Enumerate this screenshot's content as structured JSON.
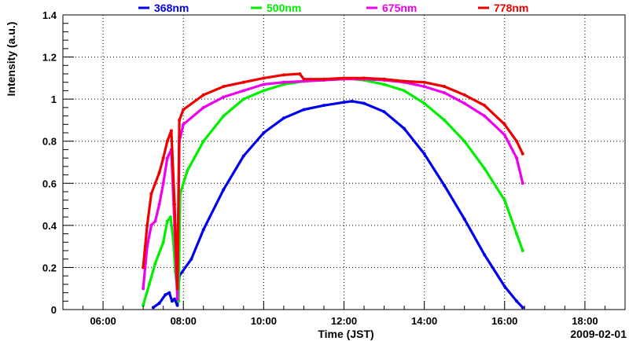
{
  "chart_data": {
    "type": "scatter",
    "title": "",
    "xlabel": "Time (JST)",
    "ylabel": "Intensity (a.u.)",
    "date_label": "2009-02-01",
    "xlim": [
      5.0,
      19.0
    ],
    "ylim": [
      0,
      1.4
    ],
    "x_ticks": [
      {
        "v": 6,
        "label": "06:00"
      },
      {
        "v": 8,
        "label": "08:00"
      },
      {
        "v": 10,
        "label": "10:00"
      },
      {
        "v": 12,
        "label": "12:00"
      },
      {
        "v": 14,
        "label": "14:00"
      },
      {
        "v": 16,
        "label": "16:00"
      },
      {
        "v": 18,
        "label": "18:00"
      }
    ],
    "y_ticks": [
      {
        "v": 0,
        "label": "0"
      },
      {
        "v": 0.2,
        "label": "0.2"
      },
      {
        "v": 0.4,
        "label": "0.4"
      },
      {
        "v": 0.6,
        "label": "0.6"
      },
      {
        "v": 0.8,
        "label": "0.8"
      },
      {
        "v": 1.0,
        "label": "1"
      },
      {
        "v": 1.2,
        "label": "1.2"
      },
      {
        "v": 1.4,
        "label": "1.4"
      }
    ],
    "grid": true,
    "legend_position": "top",
    "series": [
      {
        "name": "368nm",
        "color": "#0000ee",
        "x": [
          7.25,
          7.4,
          7.55,
          7.65,
          7.72,
          7.78,
          7.85,
          7.9,
          8.2,
          8.5,
          9.0,
          9.5,
          10.0,
          10.5,
          11.0,
          11.5,
          12.0,
          12.2,
          12.5,
          13.0,
          13.5,
          14.0,
          14.5,
          15.0,
          15.5,
          16.0,
          16.3,
          16.45
        ],
        "y": [
          0.01,
          0.03,
          0.07,
          0.08,
          0.04,
          0.05,
          0.02,
          0.16,
          0.24,
          0.38,
          0.57,
          0.73,
          0.84,
          0.91,
          0.95,
          0.97,
          0.985,
          0.99,
          0.98,
          0.94,
          0.86,
          0.74,
          0.59,
          0.43,
          0.26,
          0.11,
          0.04,
          0.01
        ]
      },
      {
        "name": "500nm",
        "color": "#00ee00",
        "x": [
          7.0,
          7.15,
          7.3,
          7.5,
          7.6,
          7.68,
          7.75,
          7.8,
          7.88,
          7.92,
          8.1,
          8.5,
          9.0,
          9.5,
          10.0,
          10.5,
          11.0,
          11.5,
          12.0,
          12.5,
          13.0,
          13.5,
          14.0,
          14.5,
          15.0,
          15.5,
          16.0,
          16.3,
          16.45
        ],
        "y": [
          0.02,
          0.12,
          0.22,
          0.32,
          0.42,
          0.44,
          0.33,
          0.18,
          0.04,
          0.55,
          0.66,
          0.8,
          0.92,
          1.0,
          1.04,
          1.07,
          1.085,
          1.09,
          1.1,
          1.09,
          1.07,
          1.04,
          0.98,
          0.9,
          0.8,
          0.67,
          0.52,
          0.36,
          0.28
        ]
      },
      {
        "name": "675nm",
        "color": "#ee00ee",
        "x": [
          7.0,
          7.1,
          7.2,
          7.3,
          7.4,
          7.5,
          7.6,
          7.7,
          7.78,
          7.85,
          7.9,
          8.0,
          8.5,
          9.0,
          9.5,
          10.0,
          10.5,
          11.0,
          11.5,
          12.0,
          12.5,
          13.0,
          13.5,
          14.0,
          14.5,
          15.0,
          15.5,
          16.0,
          16.3,
          16.45
        ],
        "y": [
          0.1,
          0.3,
          0.4,
          0.42,
          0.5,
          0.6,
          0.72,
          0.76,
          0.4,
          0.05,
          0.8,
          0.88,
          0.96,
          1.01,
          1.04,
          1.07,
          1.08,
          1.085,
          1.09,
          1.095,
          1.095,
          1.09,
          1.08,
          1.06,
          1.03,
          0.98,
          0.92,
          0.83,
          0.72,
          0.6
        ]
      },
      {
        "name": "778nm",
        "color": "#ee0000",
        "x": [
          7.0,
          7.1,
          7.2,
          7.3,
          7.4,
          7.5,
          7.6,
          7.7,
          7.78,
          7.85,
          7.9,
          8.0,
          8.5,
          9.0,
          9.5,
          10.0,
          10.5,
          10.9,
          11.0,
          11.5,
          12.0,
          12.5,
          13.0,
          13.5,
          14.0,
          14.5,
          15.0,
          15.5,
          16.0,
          16.3,
          16.45
        ],
        "y": [
          0.2,
          0.4,
          0.55,
          0.6,
          0.65,
          0.72,
          0.8,
          0.85,
          0.5,
          0.1,
          0.9,
          0.95,
          1.02,
          1.06,
          1.08,
          1.1,
          1.115,
          1.12,
          1.095,
          1.095,
          1.1,
          1.1,
          1.095,
          1.085,
          1.08,
          1.06,
          1.02,
          0.97,
          0.88,
          0.8,
          0.74
        ]
      }
    ]
  }
}
